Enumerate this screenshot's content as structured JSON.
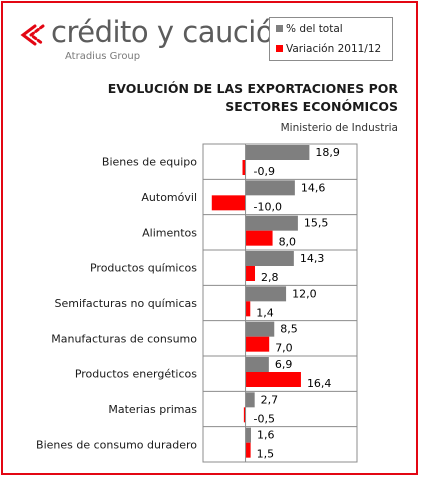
{
  "brand": {
    "name": "crédito y caución",
    "tagline": "Atradius Group"
  },
  "colors": {
    "border": "#e30613",
    "series_total": "#7f7f7f",
    "series_variation": "#ff0000",
    "logo_chevron": "#e30613",
    "logo_text": "#5c5c5c"
  },
  "legend": {
    "items": [
      {
        "label": "% del total",
        "color": "#7f7f7f"
      },
      {
        "label": "Variación 2011/12",
        "color": "#ff0000"
      }
    ]
  },
  "title_line1": "EVOLUCIÓN DE LAS EXPORTACIONES POR",
  "title_line2": "SECTORES ECONÓMICOS",
  "source": "Ministerio de Industria",
  "chart_data": {
    "type": "bar",
    "orientation": "horizontal",
    "categories": [
      "Bienes de equipo",
      "Automóvil",
      "Alimentos",
      "Productos químicos",
      "Semifacturas no químicas",
      "Manufacturas de consumo",
      "Productos energéticos",
      "Materias primas",
      "Bienes de consumo duradero"
    ],
    "series": [
      {
        "name": "% del total",
        "color": "#7f7f7f",
        "values": [
          18.9,
          14.6,
          15.5,
          14.3,
          12.0,
          8.5,
          6.9,
          2.7,
          1.6
        ],
        "labels": [
          "18,9",
          "14,6",
          "15,5",
          "14,3",
          "12,0",
          "8,5",
          "6,9",
          "2,7",
          "1,6"
        ]
      },
      {
        "name": "Variación 2011/12",
        "color": "#ff0000",
        "values": [
          -0.9,
          -10.0,
          8.0,
          2.8,
          1.4,
          7.0,
          16.4,
          -0.5,
          1.5
        ],
        "labels": [
          "-0,9",
          "-10,0",
          "8,0",
          "2,8",
          "1,4",
          "7,0",
          "16,4",
          "-0,5",
          "1,5"
        ]
      }
    ],
    "title": "EVOLUCIÓN DE LAS EXPORTACIONES POR SECTORES ECONÓMICOS",
    "subtitle": "Ministerio de Industria",
    "xlim": [
      -12.6,
      33
    ],
    "grid": true,
    "legend_position": "top-right"
  }
}
